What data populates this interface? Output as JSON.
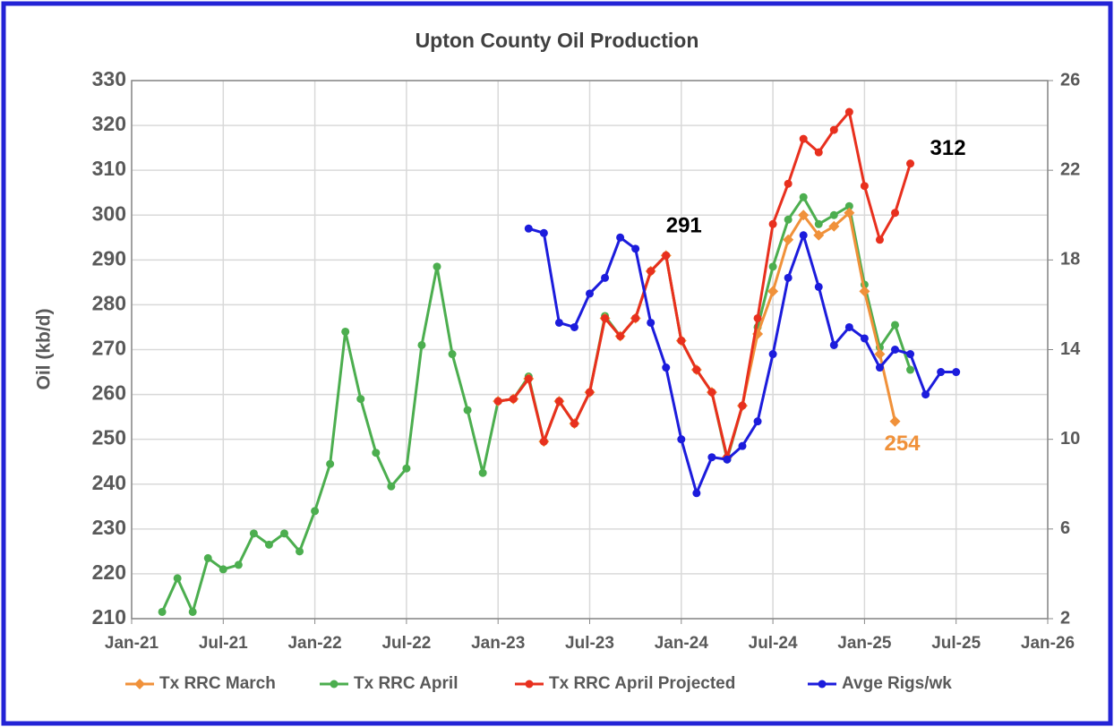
{
  "chart_data": {
    "type": "line",
    "title": "Upton County Oil Production",
    "y_label": "Oil (kb/d)",
    "x": [
      "2021-03",
      "2021-04",
      "2021-05",
      "2021-06",
      "2021-07",
      "2021-08",
      "2021-09",
      "2021-10",
      "2021-11",
      "2021-12",
      "2022-01",
      "2022-02",
      "2022-03",
      "2022-04",
      "2022-05",
      "2022-06",
      "2022-07",
      "2022-08",
      "2022-09",
      "2022-10",
      "2022-11",
      "2022-12",
      "2023-01",
      "2023-02",
      "2023-03",
      "2023-04",
      "2023-05",
      "2023-06",
      "2023-07",
      "2023-08",
      "2023-09",
      "2023-10",
      "2023-11",
      "2023-12",
      "2024-01",
      "2024-02",
      "2024-03",
      "2024-04",
      "2024-05",
      "2024-06",
      "2024-07",
      "2024-08",
      "2024-09",
      "2024-10",
      "2024-11",
      "2024-12",
      "2025-01",
      "2025-02",
      "2025-03",
      "2025-04",
      "2025-05",
      "2025-06",
      "2025-07"
    ],
    "xlim": [
      "2021-01",
      "2026-01"
    ],
    "xticks": [
      {
        "value": "2021-01",
        "label": "Jan-21"
      },
      {
        "value": "2021-07",
        "label": "Jul-21"
      },
      {
        "value": "2022-01",
        "label": "Jan-22"
      },
      {
        "value": "2022-07",
        "label": "Jul-22"
      },
      {
        "value": "2023-01",
        "label": "Jan-23"
      },
      {
        "value": "2023-07",
        "label": "Jul-23"
      },
      {
        "value": "2024-01",
        "label": "Jan-24"
      },
      {
        "value": "2024-07",
        "label": "Jul-24"
      },
      {
        "value": "2025-01",
        "label": "Jan-25"
      },
      {
        "value": "2025-07",
        "label": "Jul-25"
      },
      {
        "value": "2026-01",
        "label": "Jan-26"
      }
    ],
    "ylim": [
      210,
      330
    ],
    "yticks": [
      210,
      220,
      230,
      240,
      250,
      260,
      270,
      280,
      290,
      300,
      310,
      320,
      330
    ],
    "y2lim": [
      2,
      26
    ],
    "y2ticks": [
      2,
      6,
      10,
      14,
      18,
      22,
      26
    ],
    "grid": true,
    "series": [
      {
        "name": "Tx RRC April",
        "color": "#4cae4f",
        "marker": "circle",
        "values": [
          211.5,
          219,
          211.5,
          223.5,
          221,
          222,
          229,
          226.5,
          229,
          225,
          234,
          244.5,
          274,
          259,
          247,
          239.5,
          243.5,
          271,
          288.5,
          269,
          256.5,
          242.5,
          258.5,
          259,
          264,
          249.5,
          258.5,
          253.5,
          260.5,
          277.5,
          273,
          277,
          287.5,
          291,
          272,
          265.5,
          260.5,
          245.5,
          257.5,
          275,
          288.5,
          299,
          304,
          298,
          300,
          302,
          284.5,
          270.5,
          275.5,
          265.5,
          null,
          null,
          null
        ]
      },
      {
        "name": "Tx RRC March",
        "color": "#f0913a",
        "marker": "diamond",
        "values": [
          null,
          null,
          null,
          null,
          null,
          null,
          null,
          null,
          null,
          null,
          null,
          null,
          null,
          null,
          null,
          null,
          null,
          null,
          null,
          null,
          null,
          null,
          258.5,
          259,
          263.5,
          249.5,
          258.5,
          253.5,
          260.5,
          277,
          273,
          277,
          287.5,
          291,
          272,
          265.5,
          260.5,
          246,
          257.5,
          273.5,
          283,
          294.5,
          300,
          295.5,
          297.5,
          300.5,
          283,
          269,
          254,
          null,
          null,
          null,
          null
        ]
      },
      {
        "name": "Tx RRC April Projected",
        "color": "#e8301e",
        "marker": "circle",
        "values": [
          null,
          null,
          null,
          null,
          null,
          null,
          null,
          null,
          null,
          null,
          null,
          null,
          null,
          null,
          null,
          null,
          null,
          null,
          null,
          null,
          null,
          null,
          258.5,
          259,
          263.5,
          249.5,
          258.5,
          253.5,
          260.5,
          277,
          273,
          277,
          287.5,
          291,
          272,
          265.5,
          260.5,
          246,
          257.5,
          277,
          298,
          307,
          317,
          314,
          319,
          323,
          306.5,
          294.5,
          300.5,
          311.5,
          null,
          null,
          null
        ]
      },
      {
        "name": "Avge Rigs/wk",
        "color": "#1c1cdc",
        "marker": "circle",
        "axis": "y2",
        "values": [
          null,
          null,
          null,
          null,
          null,
          null,
          null,
          null,
          null,
          null,
          null,
          null,
          null,
          null,
          null,
          null,
          null,
          null,
          null,
          null,
          null,
          null,
          null,
          null,
          19.4,
          19.2,
          15.2,
          15,
          16.5,
          17.2,
          19,
          18.5,
          15.2,
          13.2,
          10,
          7.6,
          9.2,
          9.1,
          9.7,
          10.8,
          13.8,
          17.2,
          19.1,
          16.8,
          14.2,
          15,
          14.5,
          13.2,
          14,
          13.8,
          12,
          13,
          13
        ]
      }
    ],
    "legend_order": [
      1,
      0,
      2,
      3
    ],
    "annotations": [
      {
        "text": "291",
        "x": "2023-12",
        "y": 291,
        "color": "#000000"
      },
      {
        "text": "312",
        "x": "2025-04",
        "y": 311.5,
        "color": "#000000"
      },
      {
        "text": "254",
        "x": "2025-03",
        "y": 254,
        "color": "#f0913a"
      }
    ]
  }
}
